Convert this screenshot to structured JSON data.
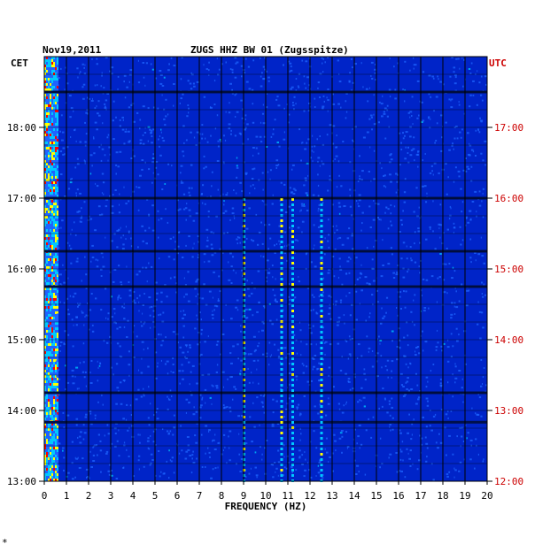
{
  "chart_data": {
    "type": "heatmap",
    "date": "Nov19,2011",
    "title": "ZUGS HHZ BW 01 (Zugsspitze)",
    "xlabel": "FREQUENCY (HZ)",
    "left_timezone": "CET",
    "right_timezone": "UTC",
    "x_ticks": [
      "0",
      "1",
      "2",
      "3",
      "4",
      "5",
      "6",
      "7",
      "8",
      "9",
      "10",
      "11",
      "12",
      "13",
      "14",
      "15",
      "16",
      "17",
      "18",
      "19",
      "20"
    ],
    "xlim": [
      0,
      20
    ],
    "left_time_ticks": [
      "13:00",
      "14:00",
      "15:00",
      "16:00",
      "17:00",
      "18:00"
    ],
    "right_time_ticks": [
      "12:00",
      "13:00",
      "14:00",
      "15:00",
      "16:00",
      "17:00"
    ],
    "time_range_cet": [
      "13:00",
      "19:00"
    ],
    "dark_gaps_cet": [
      "18:30",
      "17:00",
      "16:15",
      "15:45",
      "14:15",
      "13:50"
    ],
    "strong_lines_hz": [
      9,
      10.7,
      11.2,
      12.5
    ],
    "low_freq_energy_hz": [
      0,
      0.6
    ],
    "colors": {
      "background": "#0024c8",
      "medium": "#1e64ff",
      "cyan": "#00c8ff",
      "yellow": "#ffff00",
      "red": "#ff0000",
      "utc_label": "#cc0000",
      "grid": "#000000"
    }
  },
  "footer_mark": "*"
}
